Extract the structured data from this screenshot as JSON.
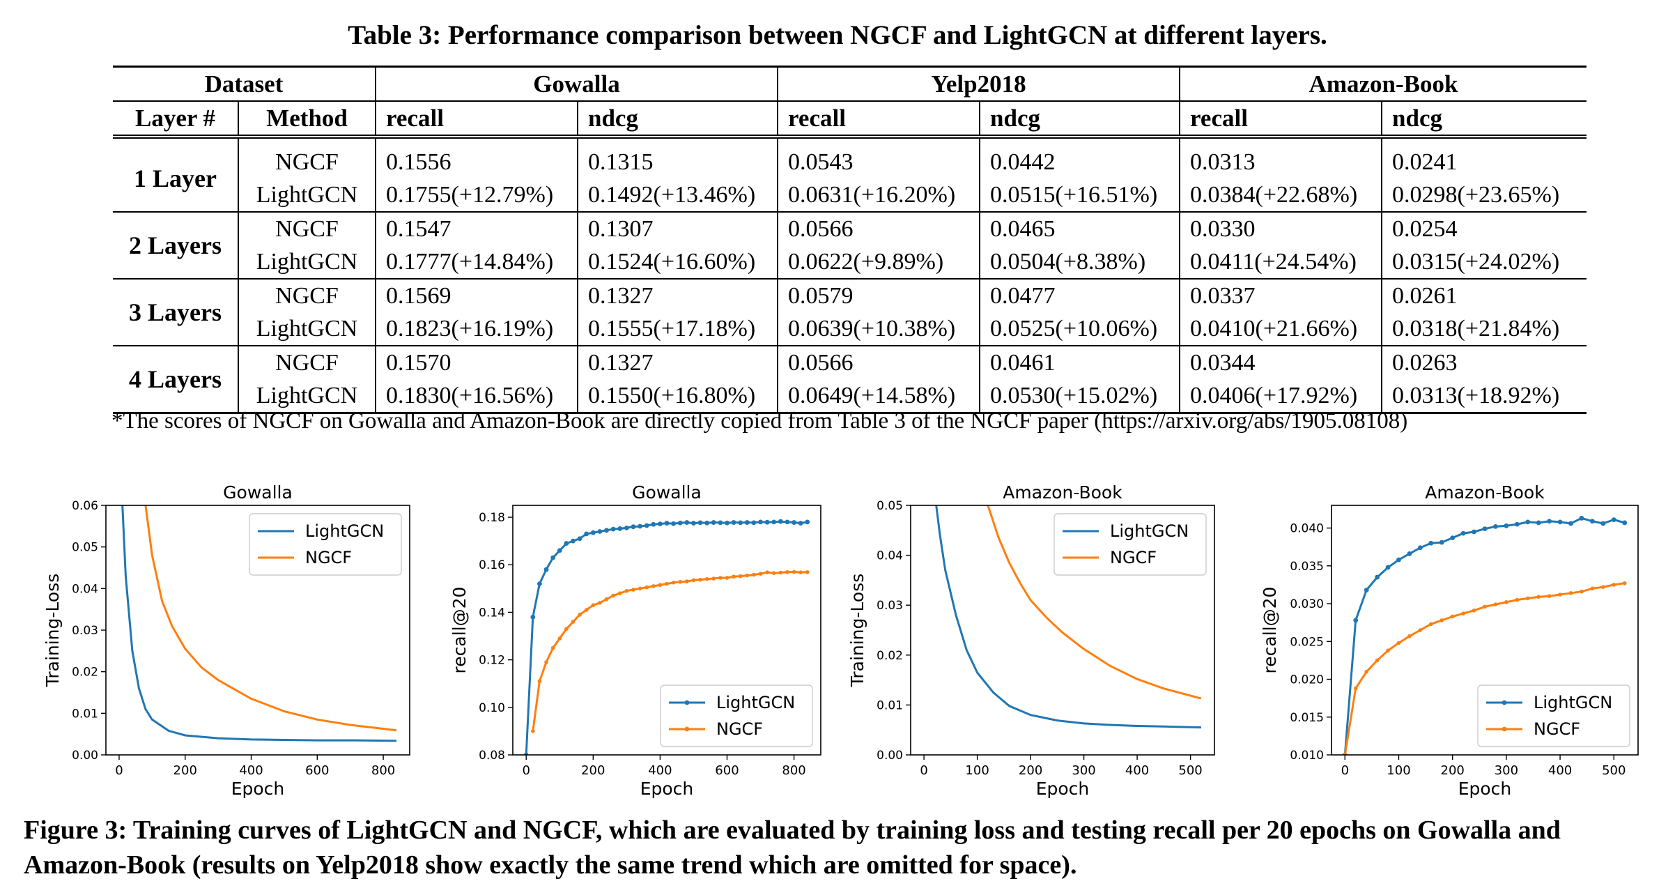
{
  "table": {
    "caption": "Table 3: Performance comparison between NGCF and LightGCN at different layers.",
    "header": {
      "dataset": "Dataset",
      "layer": "Layer #",
      "method": "Method",
      "groups": [
        "Gowalla",
        "Yelp2018",
        "Amazon-Book"
      ],
      "metrics": [
        "recall",
        "ndcg",
        "recall",
        "ndcg",
        "recall",
        "ndcg"
      ]
    },
    "rows": [
      {
        "layer": "1 Layer",
        "ngcf": {
          "method": "NGCF",
          "values": [
            "0.1556",
            "0.1315",
            "0.0543",
            "0.0442",
            "0.0313",
            "0.0241"
          ]
        },
        "lightgcn": {
          "method": "LightGCN",
          "values": [
            "0.1755(+12.79%)",
            "0.1492(+13.46%)",
            "0.0631(+16.20%)",
            "0.0515(+16.51%)",
            "0.0384(+22.68%)",
            "0.0298(+23.65%)"
          ]
        }
      },
      {
        "layer": "2 Layers",
        "ngcf": {
          "method": "NGCF",
          "values": [
            "0.1547",
            "0.1307",
            "0.0566",
            "0.0465",
            "0.0330",
            "0.0254"
          ]
        },
        "lightgcn": {
          "method": "LightGCN",
          "values": [
            "0.1777(+14.84%)",
            "0.1524(+16.60%)",
            "0.0622(+9.89%)",
            "0.0504(+8.38%)",
            "0.0411(+24.54%)",
            "0.0315(+24.02%)"
          ]
        }
      },
      {
        "layer": "3 Layers",
        "ngcf": {
          "method": "NGCF",
          "values": [
            "0.1569",
            "0.1327",
            "0.0579",
            "0.0477",
            "0.0337",
            "0.0261"
          ]
        },
        "lightgcn": {
          "method": "LightGCN",
          "values": [
            "0.1823(+16.19%)",
            "0.1555(+17.18%)",
            "0.0639(+10.38%)",
            "0.0525(+10.06%)",
            "0.0410(+21.66%)",
            "0.0318(+21.84%)"
          ]
        }
      },
      {
        "layer": "4 Layers",
        "ngcf": {
          "method": "NGCF",
          "values": [
            "0.1570",
            "0.1327",
            "0.0566",
            "0.0461",
            "0.0344",
            "0.0263"
          ]
        },
        "lightgcn": {
          "method": "LightGCN",
          "values": [
            "0.1830(+16.56%)",
            "0.1550(+16.80%)",
            "0.0649(+14.58%)",
            "0.0530(+15.02%)",
            "0.0406(+17.92%)",
            "0.0313(+18.92%)"
          ]
        }
      }
    ],
    "footnote": "*The scores of NGCF on Gowalla and Amazon-Book are directly copied from Table 3 of the NGCF paper (https://arxiv.org/abs/1905.08108)"
  },
  "colors": {
    "lightgcn": "#1f77b4",
    "ngcf": "#ff7f0e"
  },
  "chart_data": [
    {
      "type": "line",
      "title": "Gowalla",
      "xlabel": "Epoch",
      "ylabel": "Training-Loss",
      "xlim": [
        -40,
        880
      ],
      "ylim": [
        0.0,
        0.06
      ],
      "xticks": [
        0,
        200,
        400,
        600,
        800
      ],
      "yticks": [
        0.0,
        0.01,
        0.02,
        0.03,
        0.04,
        0.05,
        0.06
      ],
      "ytick_labels": [
        "0.00",
        "0.01",
        "0.02",
        "0.03",
        "0.04",
        "0.05",
        "0.06"
      ],
      "legend": "top-right",
      "markers": false,
      "series": [
        {
          "name": "LightGCN",
          "x": [
            10,
            20,
            40,
            60,
            80,
            100,
            150,
            200,
            300,
            400,
            500,
            600,
            700,
            840
          ],
          "y": [
            0.06,
            0.043,
            0.025,
            0.016,
            0.011,
            0.0085,
            0.0058,
            0.0047,
            0.004,
            0.0037,
            0.0036,
            0.0035,
            0.0035,
            0.0034
          ]
        },
        {
          "name": "NGCF",
          "x": [
            80,
            100,
            130,
            160,
            200,
            250,
            300,
            400,
            500,
            600,
            700,
            840
          ],
          "y": [
            0.06,
            0.048,
            0.037,
            0.031,
            0.0255,
            0.021,
            0.018,
            0.0135,
            0.0105,
            0.0085,
            0.0072,
            0.0059
          ]
        }
      ]
    },
    {
      "type": "line",
      "title": "Gowalla",
      "xlabel": "Epoch",
      "ylabel": "recall@20",
      "xlim": [
        -40,
        880
      ],
      "ylim": [
        0.08,
        0.185
      ],
      "xticks": [
        0,
        200,
        400,
        600,
        800
      ],
      "yticks": [
        0.08,
        0.1,
        0.12,
        0.14,
        0.16,
        0.18
      ],
      "ytick_labels": [
        "0.08",
        "0.10",
        "0.12",
        "0.14",
        "0.16",
        "0.18"
      ],
      "legend": "bottom-right",
      "markers": true,
      "series": [
        {
          "name": "LightGCN",
          "x": [
            0,
            20,
            40,
            60,
            80,
            100,
            120,
            140,
            160,
            180,
            200,
            220,
            240,
            260,
            280,
            300,
            320,
            340,
            360,
            380,
            400,
            420,
            440,
            460,
            480,
            500,
            520,
            540,
            560,
            580,
            600,
            620,
            640,
            660,
            680,
            700,
            720,
            740,
            760,
            780,
            800,
            820,
            840
          ],
          "y": [
            0.08,
            0.138,
            0.152,
            0.158,
            0.163,
            0.166,
            0.169,
            0.17,
            0.171,
            0.173,
            0.1735,
            0.174,
            0.1745,
            0.175,
            0.1752,
            0.1755,
            0.176,
            0.1762,
            0.1765,
            0.177,
            0.1772,
            0.1775,
            0.1773,
            0.1776,
            0.1778,
            0.1775,
            0.1777,
            0.1776,
            0.1778,
            0.1777,
            0.1776,
            0.1778,
            0.1777,
            0.1778,
            0.1777,
            0.178,
            0.1779,
            0.178,
            0.1782,
            0.178,
            0.1778,
            0.1775,
            0.178
          ]
        },
        {
          "name": "NGCF",
          "x": [
            20,
            40,
            60,
            80,
            100,
            120,
            140,
            160,
            180,
            200,
            220,
            240,
            260,
            280,
            300,
            320,
            340,
            360,
            380,
            400,
            420,
            440,
            460,
            480,
            500,
            520,
            540,
            560,
            580,
            600,
            620,
            640,
            660,
            680,
            700,
            720,
            740,
            760,
            780,
            800,
            820,
            840
          ],
          "y": [
            0.09,
            0.111,
            0.119,
            0.125,
            0.129,
            0.133,
            0.136,
            0.139,
            0.141,
            0.143,
            0.144,
            0.1455,
            0.147,
            0.148,
            0.149,
            0.1495,
            0.15,
            0.1505,
            0.151,
            0.1515,
            0.152,
            0.1525,
            0.1528,
            0.153,
            0.1535,
            0.1537,
            0.154,
            0.1542,
            0.1545,
            0.1545,
            0.155,
            0.1552,
            0.1555,
            0.1558,
            0.1562,
            0.1568,
            0.1565,
            0.1567,
            0.1569,
            0.157,
            0.1568,
            0.1569
          ]
        }
      ]
    },
    {
      "type": "line",
      "title": "Amazon-Book",
      "xlabel": "Epoch",
      "ylabel": "Training-Loss",
      "xlim": [
        -25,
        545
      ],
      "ylim": [
        0.0,
        0.05
      ],
      "xticks": [
        0,
        100,
        200,
        300,
        400,
        500
      ],
      "yticks": [
        0.0,
        0.01,
        0.02,
        0.03,
        0.04,
        0.05
      ],
      "ytick_labels": [
        "0.00",
        "0.01",
        "0.02",
        "0.03",
        "0.04",
        "0.05"
      ],
      "legend": "top-right",
      "markers": false,
      "series": [
        {
          "name": "LightGCN",
          "x": [
            23,
            30,
            40,
            60,
            80,
            100,
            130,
            160,
            200,
            250,
            300,
            350,
            400,
            450,
            520
          ],
          "y": [
            0.05,
            0.044,
            0.037,
            0.028,
            0.021,
            0.0165,
            0.0125,
            0.0098,
            0.008,
            0.0069,
            0.0063,
            0.006,
            0.0058,
            0.0057,
            0.0055
          ]
        },
        {
          "name": "NGCF",
          "x": [
            120,
            140,
            160,
            180,
            200,
            230,
            260,
            300,
            350,
            400,
            450,
            520
          ],
          "y": [
            0.05,
            0.0435,
            0.0385,
            0.0345,
            0.031,
            0.0275,
            0.0245,
            0.0212,
            0.0178,
            0.0152,
            0.0133,
            0.0113
          ]
        }
      ]
    },
    {
      "type": "line",
      "title": "Amazon-Book",
      "xlabel": "Epoch",
      "ylabel": "recall@20",
      "xlim": [
        -25,
        545
      ],
      "ylim": [
        0.01,
        0.043
      ],
      "xticks": [
        0,
        100,
        200,
        300,
        400,
        500
      ],
      "yticks": [
        0.01,
        0.015,
        0.02,
        0.025,
        0.03,
        0.035,
        0.04
      ],
      "ytick_labels": [
        "0.010",
        "0.015",
        "0.020",
        "0.025",
        "0.030",
        "0.035",
        "0.040"
      ],
      "legend": "bottom-right",
      "markers": true,
      "series": [
        {
          "name": "LightGCN",
          "x": [
            0,
            20,
            40,
            60,
            80,
            100,
            120,
            140,
            160,
            180,
            200,
            220,
            240,
            260,
            280,
            300,
            320,
            340,
            360,
            380,
            400,
            420,
            440,
            460,
            480,
            500,
            520
          ],
          "y": [
            0.01,
            0.0278,
            0.0318,
            0.0335,
            0.0348,
            0.0358,
            0.0366,
            0.0374,
            0.038,
            0.0381,
            0.0387,
            0.0393,
            0.0395,
            0.0399,
            0.0402,
            0.0403,
            0.0405,
            0.0408,
            0.0407,
            0.0409,
            0.0408,
            0.0406,
            0.0413,
            0.0409,
            0.0406,
            0.0411,
            0.0407
          ]
        },
        {
          "name": "NGCF",
          "x": [
            0,
            20,
            40,
            60,
            80,
            100,
            120,
            140,
            160,
            180,
            200,
            220,
            240,
            260,
            280,
            300,
            320,
            340,
            360,
            380,
            400,
            420,
            440,
            460,
            480,
            500,
            520
          ],
          "y": [
            0.01,
            0.0188,
            0.021,
            0.0225,
            0.0238,
            0.0248,
            0.0257,
            0.0265,
            0.0273,
            0.0278,
            0.0283,
            0.0287,
            0.0291,
            0.0296,
            0.0299,
            0.0302,
            0.0305,
            0.0307,
            0.0309,
            0.031,
            0.0312,
            0.0314,
            0.0316,
            0.032,
            0.0322,
            0.0325,
            0.0327
          ]
        }
      ]
    }
  ],
  "figure_caption": "Figure 3: Training curves of LightGCN and NGCF, which are evaluated by training loss and testing recall per 20 epochs on Gowalla and Amazon-Book (results on Yelp2018 show exactly the same trend which are omitted for space)."
}
